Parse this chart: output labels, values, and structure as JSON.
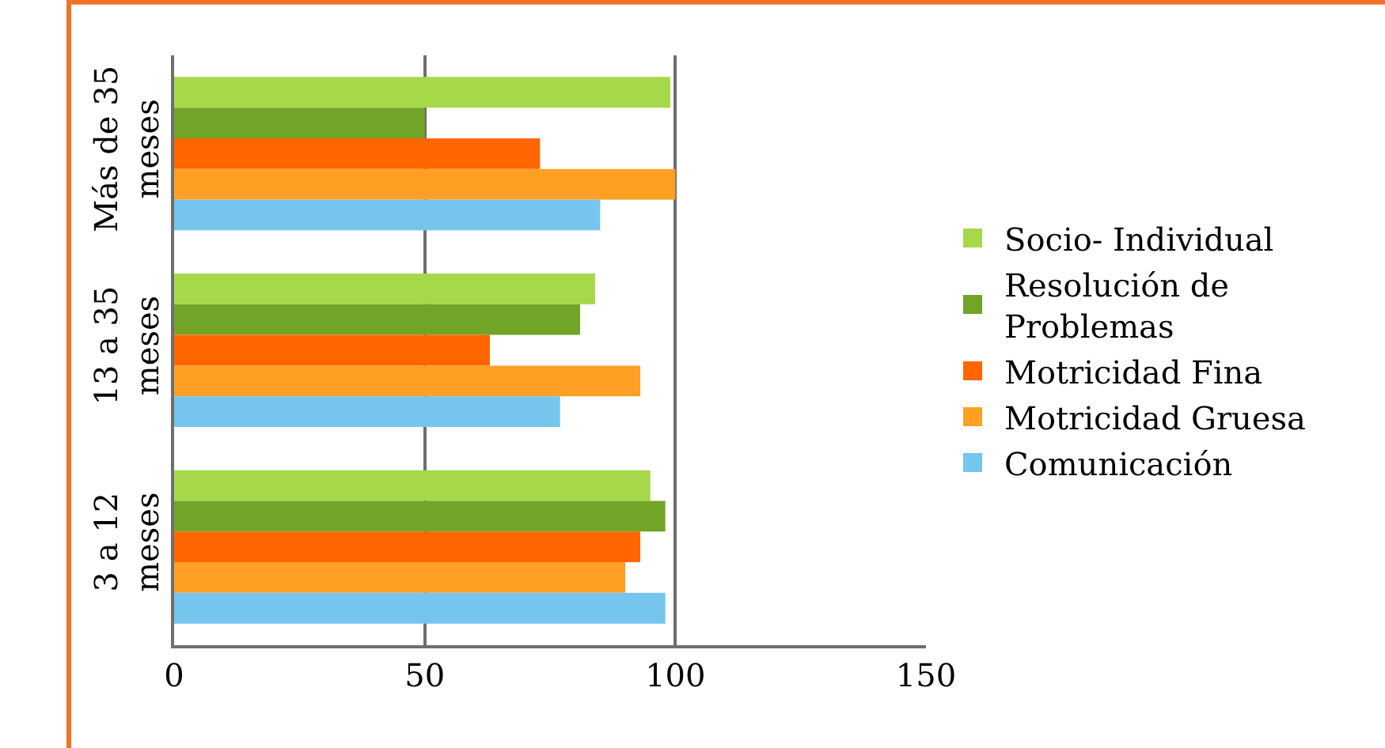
{
  "chart_data": {
    "type": "bar",
    "orientation": "horizontal",
    "categories": [
      "Más de 35 meses",
      "13 a 35 meses",
      "3 a 12 meses"
    ],
    "series": [
      {
        "name": "Comunicación",
        "color": "#75c5ee",
        "values": [
          85,
          77,
          98
        ]
      },
      {
        "name": "Motricidad Gruesa",
        "color": "#ffa024",
        "values": [
          100,
          93,
          90
        ]
      },
      {
        "name": "Motricidad Fina",
        "color": "#ff6600",
        "values": [
          73,
          63,
          93
        ]
      },
      {
        "name": "Resolución de Problemas",
        "color": "#72a428",
        "values": [
          50,
          81,
          98
        ]
      },
      {
        "name": "Socio- Individual",
        "color": "#a6d84a",
        "values": [
          99,
          84,
          95
        ]
      }
    ],
    "xlim": [
      0,
      150
    ],
    "xticks": [
      0,
      50,
      100,
      150
    ],
    "grid": "x",
    "legend": "right"
  }
}
